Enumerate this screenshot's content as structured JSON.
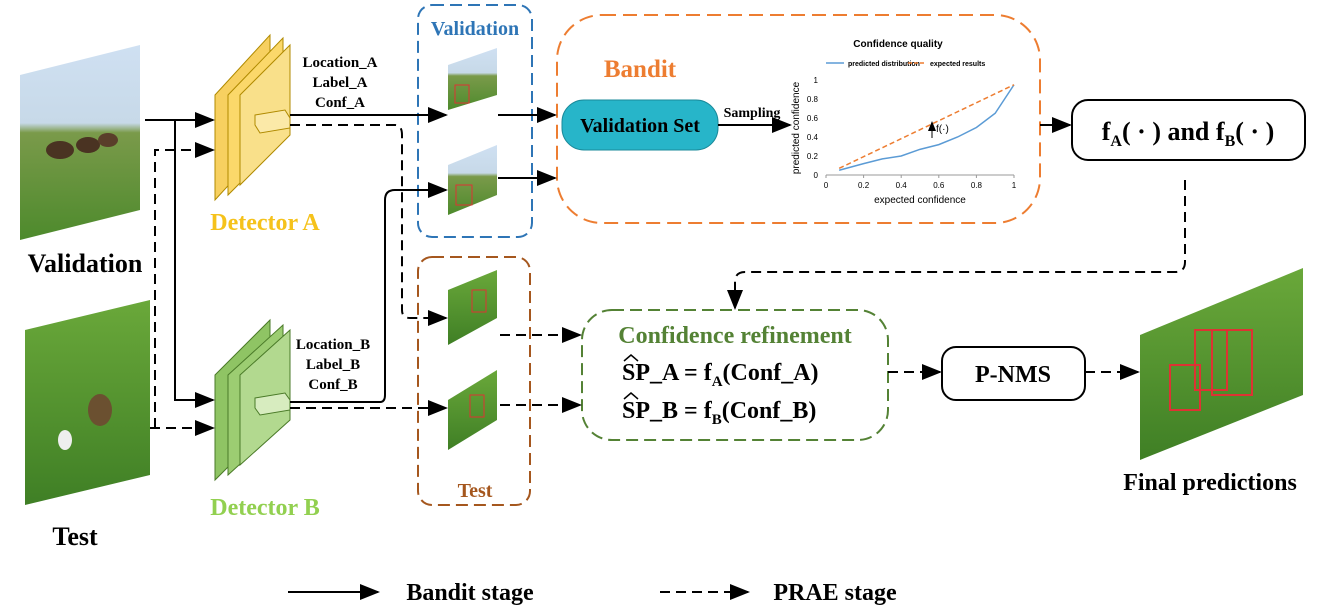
{
  "inputs": {
    "validation": "Validation",
    "test": "Test"
  },
  "detectors": [
    {
      "label": "Detector A",
      "outputs": [
        "Location_A",
        "Label_A",
        "Conf_A"
      ]
    },
    {
      "label": "Detector B",
      "outputs": [
        "Location_B",
        "Label_B",
        "Conf_B"
      ]
    }
  ],
  "groups": {
    "validation": "Validation",
    "test": "Test",
    "bandit": "Bandit"
  },
  "validation_set": "Validation  Set",
  "sampling": "Sampling",
  "inset_chart": {
    "type": "line",
    "title": "Confidence quality",
    "xlabel": "expected confidence",
    "ylabel": "predicted confidence",
    "annotation": "f(·)",
    "xlim": [
      0,
      1
    ],
    "ylim": [
      0,
      1
    ],
    "xticks": [
      0,
      0.2,
      0.4,
      0.6,
      0.8,
      1
    ],
    "yticks": [
      0,
      0.2,
      0.4,
      0.6,
      0.8,
      1
    ],
    "series": [
      {
        "name": "predicted distribution",
        "color": "#5b9bd5",
        "dash": false,
        "x": [
          0.07,
          0.2,
          0.3,
          0.4,
          0.5,
          0.6,
          0.7,
          0.8,
          0.9,
          1
        ],
        "values": [
          0.05,
          0.12,
          0.17,
          0.2,
          0.27,
          0.32,
          0.4,
          0.5,
          0.65,
          0.95
        ]
      },
      {
        "name": "expected results",
        "color": "#ed7d31",
        "dash": true,
        "x": [
          0.07,
          1
        ],
        "values": [
          0.07,
          0.95
        ]
      }
    ]
  },
  "functions": {
    "f": "f",
    "sub_a": "A",
    "mid": "( · ) and f",
    "sub_b": "B",
    "end": "( · )"
  },
  "refinement": {
    "title": "Confidence refinement",
    "rows": [
      {
        "lhs": "SP_A = f",
        "sub": "A",
        "arg": "(Conf_A)"
      },
      {
        "lhs": "SP_B = f",
        "sub": "B",
        "arg": "(Conf_B)"
      }
    ]
  },
  "pnms": "P-NMS",
  "output": "Final predictions",
  "legend": [
    "Bandit stage",
    "PRAE stage"
  ]
}
